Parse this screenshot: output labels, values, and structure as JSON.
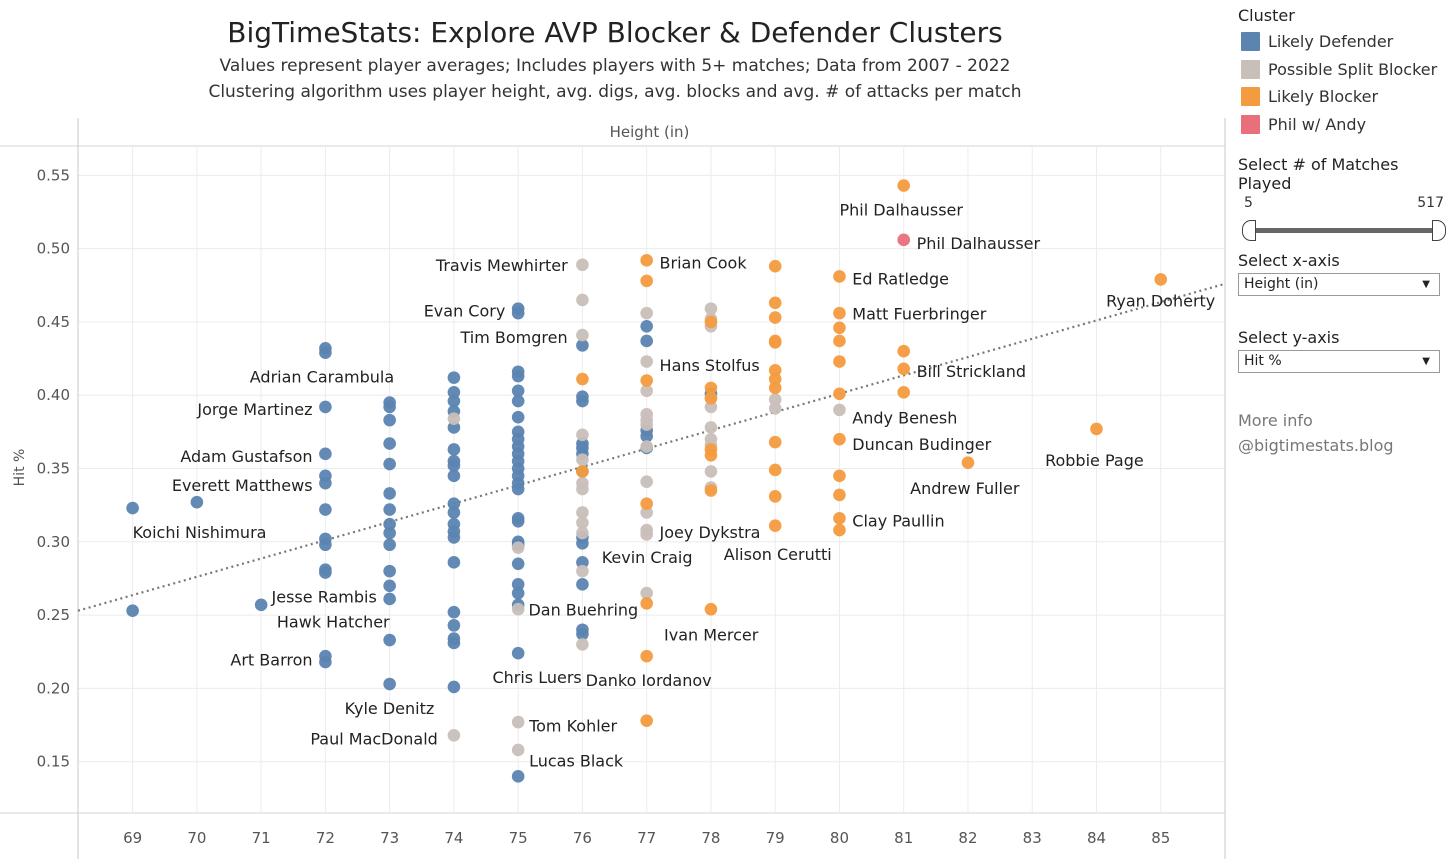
{
  "header": {
    "title": "BigTimeStats: Explore AVP Blocker & Defender Clusters",
    "subtitle1": "Values represent player averages; Includes players with 5+ matches; Data from 2007 - 2022",
    "subtitle2": "Clustering algorithm uses player height, avg. digs, avg. blocks and avg. # of attacks per match"
  },
  "legend": {
    "title": "Cluster",
    "items": [
      {
        "label": "Likely Defender",
        "color": "#5b84b1"
      },
      {
        "label": "Possible Split Blocker",
        "color": "#c9bfb9"
      },
      {
        "label": "Likely Blocker",
        "color": "#f49b3f"
      },
      {
        "label": "Phil w/ Andy",
        "color": "#e8707a"
      }
    ]
  },
  "controls": {
    "slider_title": "Select # of Matches Played",
    "slider_min": "5",
    "slider_max": "517",
    "x_title": "Select x-axis",
    "x_value": "Height (in)",
    "y_title": "Select y-axis",
    "y_value": "Hit %",
    "more_info": "More info",
    "blog": "@bigtimestats.blog"
  },
  "chart_data": {
    "type": "scatter",
    "xlabel": "Height (in)",
    "ylabel": "Hit %",
    "xlim": [
      68.15,
      86.0
    ],
    "ylim": [
      0.115,
      0.57
    ],
    "xticks": [
      "69",
      "70",
      "71",
      "72",
      "73",
      "74",
      "75",
      "76",
      "77",
      "78",
      "79",
      "80",
      "81",
      "82",
      "83",
      "84",
      "85"
    ],
    "yticks": [
      "0.15",
      "0.20",
      "0.25",
      "0.30",
      "0.35",
      "0.40",
      "0.45",
      "0.50",
      "0.55"
    ],
    "trendline": {
      "x": [
        68.15,
        86.0
      ],
      "y": [
        0.253,
        0.476
      ]
    },
    "series": [
      {
        "name": "Likely Defender",
        "color": "#5b84b1",
        "points": [
          [
            69,
            0.323
          ],
          [
            69,
            0.253
          ],
          [
            70,
            0.327
          ],
          [
            71,
            0.257
          ],
          [
            72,
            0.432
          ],
          [
            72,
            0.429
          ],
          [
            72,
            0.392
          ],
          [
            72,
            0.36
          ],
          [
            72,
            0.345
          ],
          [
            72,
            0.34
          ],
          [
            72,
            0.322
          ],
          [
            72,
            0.302
          ],
          [
            72,
            0.298
          ],
          [
            72,
            0.281
          ],
          [
            72,
            0.279
          ],
          [
            72,
            0.222
          ],
          [
            72,
            0.218
          ],
          [
            73,
            0.395
          ],
          [
            73,
            0.392
          ],
          [
            73,
            0.383
          ],
          [
            73,
            0.367
          ],
          [
            73,
            0.353
          ],
          [
            73,
            0.333
          ],
          [
            73,
            0.322
          ],
          [
            73,
            0.312
          ],
          [
            73,
            0.306
          ],
          [
            73,
            0.298
          ],
          [
            73,
            0.28
          ],
          [
            73,
            0.27
          ],
          [
            73,
            0.261
          ],
          [
            73,
            0.233
          ],
          [
            73,
            0.203
          ],
          [
            74,
            0.412
          ],
          [
            74,
            0.402
          ],
          [
            74,
            0.396
          ],
          [
            74,
            0.389
          ],
          [
            74,
            0.378
          ],
          [
            74,
            0.363
          ],
          [
            74,
            0.355
          ],
          [
            74,
            0.352
          ],
          [
            74,
            0.345
          ],
          [
            74,
            0.326
          ],
          [
            74,
            0.32
          ],
          [
            74,
            0.312
          ],
          [
            74,
            0.307
          ],
          [
            74,
            0.303
          ],
          [
            74,
            0.286
          ],
          [
            74,
            0.252
          ],
          [
            74,
            0.243
          ],
          [
            74,
            0.234
          ],
          [
            74,
            0.231
          ],
          [
            74,
            0.201
          ],
          [
            75,
            0.459
          ],
          [
            75,
            0.456
          ],
          [
            75,
            0.416
          ],
          [
            75,
            0.413
          ],
          [
            75,
            0.403
          ],
          [
            75,
            0.396
          ],
          [
            75,
            0.385
          ],
          [
            75,
            0.375
          ],
          [
            75,
            0.37
          ],
          [
            75,
            0.365
          ],
          [
            75,
            0.36
          ],
          [
            75,
            0.355
          ],
          [
            75,
            0.35
          ],
          [
            75,
            0.345
          ],
          [
            75,
            0.34
          ],
          [
            75,
            0.336
          ],
          [
            75,
            0.316
          ],
          [
            75,
            0.314
          ],
          [
            75,
            0.3
          ],
          [
            75,
            0.298
          ],
          [
            75,
            0.285
          ],
          [
            75,
            0.271
          ],
          [
            75,
            0.265
          ],
          [
            75,
            0.257
          ],
          [
            75,
            0.224
          ],
          [
            75,
            0.14
          ],
          [
            76,
            0.434
          ],
          [
            76,
            0.399
          ],
          [
            76,
            0.396
          ],
          [
            76,
            0.367
          ],
          [
            76,
            0.364
          ],
          [
            76,
            0.36
          ],
          [
            76,
            0.348
          ],
          [
            76,
            0.303
          ],
          [
            76,
            0.299
          ],
          [
            76,
            0.286
          ],
          [
            76,
            0.271
          ],
          [
            76,
            0.24
          ],
          [
            76,
            0.237
          ],
          [
            77,
            0.447
          ],
          [
            77,
            0.437
          ],
          [
            77,
            0.376
          ],
          [
            77,
            0.372
          ],
          [
            77,
            0.364
          ],
          [
            78,
            0.401
          ]
        ]
      },
      {
        "name": "Possible Split Blocker",
        "color": "#c9bfb9",
        "points": [
          [
            74,
            0.384
          ],
          [
            74,
            0.168
          ],
          [
            75,
            0.296
          ],
          [
            75,
            0.254
          ],
          [
            75,
            0.177
          ],
          [
            75,
            0.158
          ],
          [
            76,
            0.489
          ],
          [
            76,
            0.465
          ],
          [
            76,
            0.441
          ],
          [
            76,
            0.373
          ],
          [
            76,
            0.356
          ],
          [
            76,
            0.34
          ],
          [
            76,
            0.336
          ],
          [
            76,
            0.32
          ],
          [
            76,
            0.313
          ],
          [
            76,
            0.306
          ],
          [
            76,
            0.28
          ],
          [
            76,
            0.23
          ],
          [
            77,
            0.456
          ],
          [
            77,
            0.423
          ],
          [
            77,
            0.403
          ],
          [
            77,
            0.387
          ],
          [
            77,
            0.383
          ],
          [
            77,
            0.38
          ],
          [
            77,
            0.365
          ],
          [
            77,
            0.341
          ],
          [
            77,
            0.32
          ],
          [
            77,
            0.308
          ],
          [
            77,
            0.305
          ],
          [
            77,
            0.265
          ],
          [
            78,
            0.459
          ],
          [
            78,
            0.452
          ],
          [
            78,
            0.447
          ],
          [
            78,
            0.398
          ],
          [
            78,
            0.392
          ],
          [
            78,
            0.378
          ],
          [
            78,
            0.37
          ],
          [
            78,
            0.366
          ],
          [
            78,
            0.348
          ],
          [
            78,
            0.337
          ],
          [
            79,
            0.397
          ],
          [
            79,
            0.391
          ],
          [
            80,
            0.39
          ]
        ]
      },
      {
        "name": "Likely Blocker",
        "color": "#f49b3f",
        "points": [
          [
            76,
            0.411
          ],
          [
            76,
            0.348
          ],
          [
            77,
            0.492
          ],
          [
            77,
            0.478
          ],
          [
            77,
            0.41
          ],
          [
            77,
            0.326
          ],
          [
            77,
            0.258
          ],
          [
            77,
            0.222
          ],
          [
            77,
            0.178
          ],
          [
            78,
            0.45
          ],
          [
            78,
            0.405
          ],
          [
            78,
            0.398
          ],
          [
            78,
            0.363
          ],
          [
            78,
            0.359
          ],
          [
            78,
            0.335
          ],
          [
            78,
            0.254
          ],
          [
            79,
            0.488
          ],
          [
            79,
            0.463
          ],
          [
            79,
            0.453
          ],
          [
            79,
            0.437
          ],
          [
            79,
            0.436
          ],
          [
            79,
            0.417
          ],
          [
            79,
            0.411
          ],
          [
            79,
            0.405
          ],
          [
            79,
            0.368
          ],
          [
            79,
            0.349
          ],
          [
            79,
            0.331
          ],
          [
            79,
            0.311
          ],
          [
            80,
            0.481
          ],
          [
            80,
            0.456
          ],
          [
            80,
            0.446
          ],
          [
            80,
            0.437
          ],
          [
            80,
            0.423
          ],
          [
            80,
            0.401
          ],
          [
            80,
            0.37
          ],
          [
            80,
            0.345
          ],
          [
            80,
            0.332
          ],
          [
            80,
            0.316
          ],
          [
            80,
            0.308
          ],
          [
            81,
            0.543
          ],
          [
            81,
            0.43
          ],
          [
            81,
            0.418
          ],
          [
            81,
            0.402
          ],
          [
            82,
            0.354
          ],
          [
            84,
            0.377
          ],
          [
            85,
            0.479
          ]
        ]
      },
      {
        "name": "Phil w/ Andy",
        "color": "#e8707a",
        "points": [
          [
            81,
            0.506
          ]
        ]
      }
    ],
    "annotations": [
      {
        "text": "Phil Dalhausser",
        "x": 80.0,
        "y": 0.526,
        "anchor": "start"
      },
      {
        "text": "Phil Dalhausser",
        "x": 81.2,
        "y": 0.503,
        "anchor": "start"
      },
      {
        "text": "Brian Cook",
        "x": 77.2,
        "y": 0.49,
        "anchor": "start"
      },
      {
        "text": "Ed Ratledge",
        "x": 80.2,
        "y": 0.479,
        "anchor": "start"
      },
      {
        "text": "Travis Mewhirter",
        "x": 75.77,
        "y": 0.488,
        "anchor": "end"
      },
      {
        "text": "Ryan Doherty",
        "x": 84.15,
        "y": 0.464,
        "anchor": "start"
      },
      {
        "text": "Evan Cory",
        "x": 74.8,
        "y": 0.457,
        "anchor": "end"
      },
      {
        "text": "Matt Fuerbringer",
        "x": 80.2,
        "y": 0.455,
        "anchor": "start"
      },
      {
        "text": "Tim Bomgren",
        "x": 75.77,
        "y": 0.439,
        "anchor": "end"
      },
      {
        "text": "Hans Stolfus",
        "x": 77.2,
        "y": 0.42,
        "anchor": "start"
      },
      {
        "text": "Adrian Carambula",
        "x": 73.07,
        "y": 0.412,
        "anchor": "end"
      },
      {
        "text": "Bill Strickland",
        "x": 81.2,
        "y": 0.416,
        "anchor": "start"
      },
      {
        "text": "Jorge Martinez",
        "x": 71.8,
        "y": 0.39,
        "anchor": "end"
      },
      {
        "text": "Andy Benesh",
        "x": 80.2,
        "y": 0.384,
        "anchor": "start"
      },
      {
        "text": "Duncan Budinger",
        "x": 80.2,
        "y": 0.366,
        "anchor": "start"
      },
      {
        "text": "Adam Gustafson",
        "x": 71.8,
        "y": 0.358,
        "anchor": "end"
      },
      {
        "text": "Robbie Page",
        "x": 83.2,
        "y": 0.355,
        "anchor": "start"
      },
      {
        "text": "Everett Matthews",
        "x": 71.8,
        "y": 0.338,
        "anchor": "end"
      },
      {
        "text": "Andrew Fuller",
        "x": 81.1,
        "y": 0.336,
        "anchor": "start"
      },
      {
        "text": "Clay Paullin",
        "x": 80.2,
        "y": 0.314,
        "anchor": "start"
      },
      {
        "text": "Koichi Nishimura",
        "x": 69.0,
        "y": 0.306,
        "anchor": "start"
      },
      {
        "text": "Joey Dykstra",
        "x": 77.2,
        "y": 0.306,
        "anchor": "start"
      },
      {
        "text": "Kevin Craig",
        "x": 76.3,
        "y": 0.289,
        "anchor": "start"
      },
      {
        "text": "Alison Cerutti",
        "x": 78.2,
        "y": 0.291,
        "anchor": "start"
      },
      {
        "text": "Jesse Rambis",
        "x": 72.8,
        "y": 0.262,
        "anchor": "end"
      },
      {
        "text": "Dan Buehring",
        "x": 75.16,
        "y": 0.253,
        "anchor": "start"
      },
      {
        "text": "Hawk Hatcher",
        "x": 73.0,
        "y": 0.245,
        "anchor": "end"
      },
      {
        "text": "Ivan Mercer",
        "x": 77.27,
        "y": 0.236,
        "anchor": "start"
      },
      {
        "text": "Art Barron",
        "x": 71.8,
        "y": 0.219,
        "anchor": "end"
      },
      {
        "text": "Chris Luers",
        "x": 74.6,
        "y": 0.207,
        "anchor": "start"
      },
      {
        "text": "Danko Iordanov",
        "x": 76.05,
        "y": 0.205,
        "anchor": "start"
      },
      {
        "text": "Kyle Denitz",
        "x": 72.3,
        "y": 0.186,
        "anchor": "start"
      },
      {
        "text": "Tom Kohler",
        "x": 75.17,
        "y": 0.174,
        "anchor": "start"
      },
      {
        "text": "Paul MacDonald",
        "x": 73.75,
        "y": 0.165,
        "anchor": "end"
      },
      {
        "text": "Lucas Black",
        "x": 75.17,
        "y": 0.15,
        "anchor": "start"
      }
    ]
  }
}
